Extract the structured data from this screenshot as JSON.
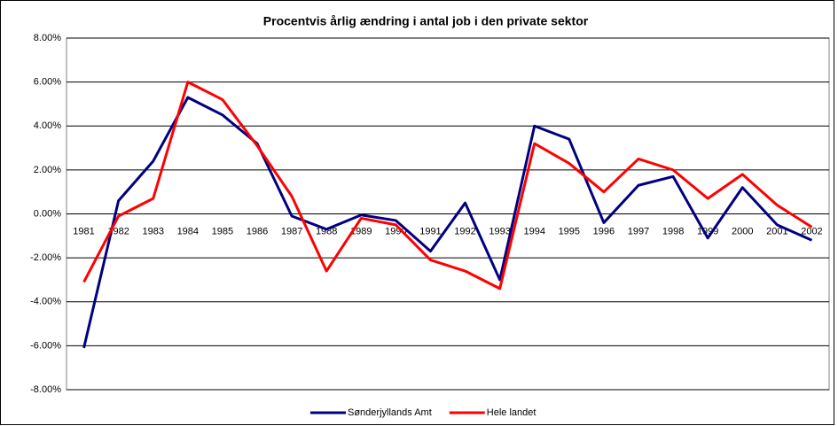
{
  "chart_data": {
    "type": "line",
    "title": "Procentvis årlig ændring i antal job i den private sektor",
    "categories": [
      "1981",
      "1982",
      "1983",
      "1984",
      "1985",
      "1986",
      "1987",
      "1988",
      "1989",
      "1990",
      "1991",
      "1992",
      "1993",
      "1994",
      "1995",
      "1996",
      "1997",
      "1998",
      "1999",
      "2000",
      "2001",
      "2002"
    ],
    "series": [
      {
        "name": "Sønderjyllands Amt",
        "color": "#000080",
        "values": [
          -6.1,
          0.6,
          2.4,
          5.3,
          4.5,
          3.2,
          -0.1,
          -0.7,
          -0.05,
          -0.3,
          -1.7,
          0.5,
          -3.0,
          4.0,
          3.4,
          -0.4,
          1.3,
          1.7,
          -1.1,
          1.2,
          -0.5,
          -1.2
        ]
      },
      {
        "name": "Hele landet",
        "color": "#ff0000",
        "values": [
          -3.1,
          -0.1,
          0.7,
          6.0,
          5.2,
          3.1,
          0.8,
          -2.6,
          -0.2,
          -0.5,
          -2.1,
          -2.6,
          -3.4,
          3.2,
          2.3,
          1.0,
          2.5,
          2.0,
          0.7,
          1.8,
          0.4,
          -0.6
        ]
      }
    ],
    "ylim": [
      -8,
      8
    ],
    "yticks": [
      {
        "value": -8,
        "label": "-8.00%"
      },
      {
        "value": -6,
        "label": "-6.00%"
      },
      {
        "value": -4,
        "label": "-4.00%"
      },
      {
        "value": -2,
        "label": "-2.00%"
      },
      {
        "value": 0,
        "label": "0.00%"
      },
      {
        "value": 2,
        "label": "2.00%"
      },
      {
        "value": 4,
        "label": "4.00%"
      },
      {
        "value": 6,
        "label": "6.00%"
      },
      {
        "value": 8,
        "label": "8.00%"
      }
    ],
    "grid": true,
    "legend": "bottom"
  }
}
